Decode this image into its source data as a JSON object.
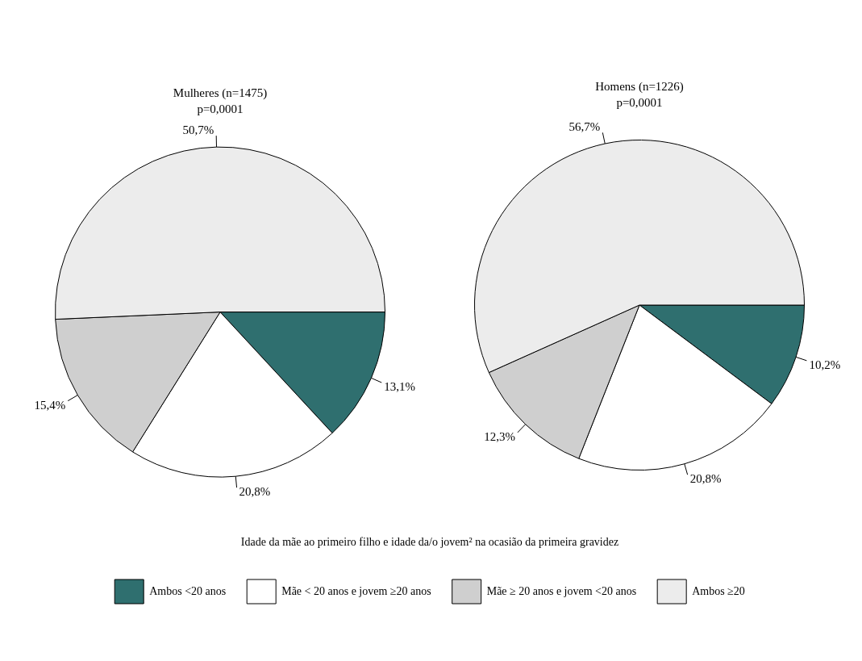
{
  "chart_data": [
    {
      "type": "pie",
      "title": "Mulheres (n=1475)",
      "subtitle": "p=0,0001",
      "legend_title": "Idade da mãe ao primeiro filho e idade da/o jovem² na ocasião da primeira gravidez",
      "legend": "bottom",
      "categories": [
        "Ambos <20 anos",
        "Mãe < 20 anos e jovem ≥20 anos",
        "Mãe ≥ 20 anos e jovem <20 anos",
        "Ambos ≥20"
      ],
      "values": [
        13.1,
        20.8,
        15.4,
        50.7
      ],
      "value_labels": [
        "13,1%",
        "20,8%",
        "15,4%",
        "50,7%"
      ],
      "colors": [
        "#2f6f6f",
        "#ffffff",
        "#cfcfcf",
        "#ececec"
      ]
    },
    {
      "type": "pie",
      "title": "Homens (n=1226)",
      "subtitle": "p=0,0001",
      "categories": [
        null,
        null,
        null,
        null
      ],
      "values": [
        10.2,
        20.8,
        12.3,
        56.7
      ],
      "value_labels": [
        "10,2%",
        "20,8%",
        "12,3%",
        "56,7%"
      ],
      "colors": [
        "#2f6f6f",
        "#ffffff",
        "#cfcfcf",
        "#ececec"
      ]
    }
  ]
}
